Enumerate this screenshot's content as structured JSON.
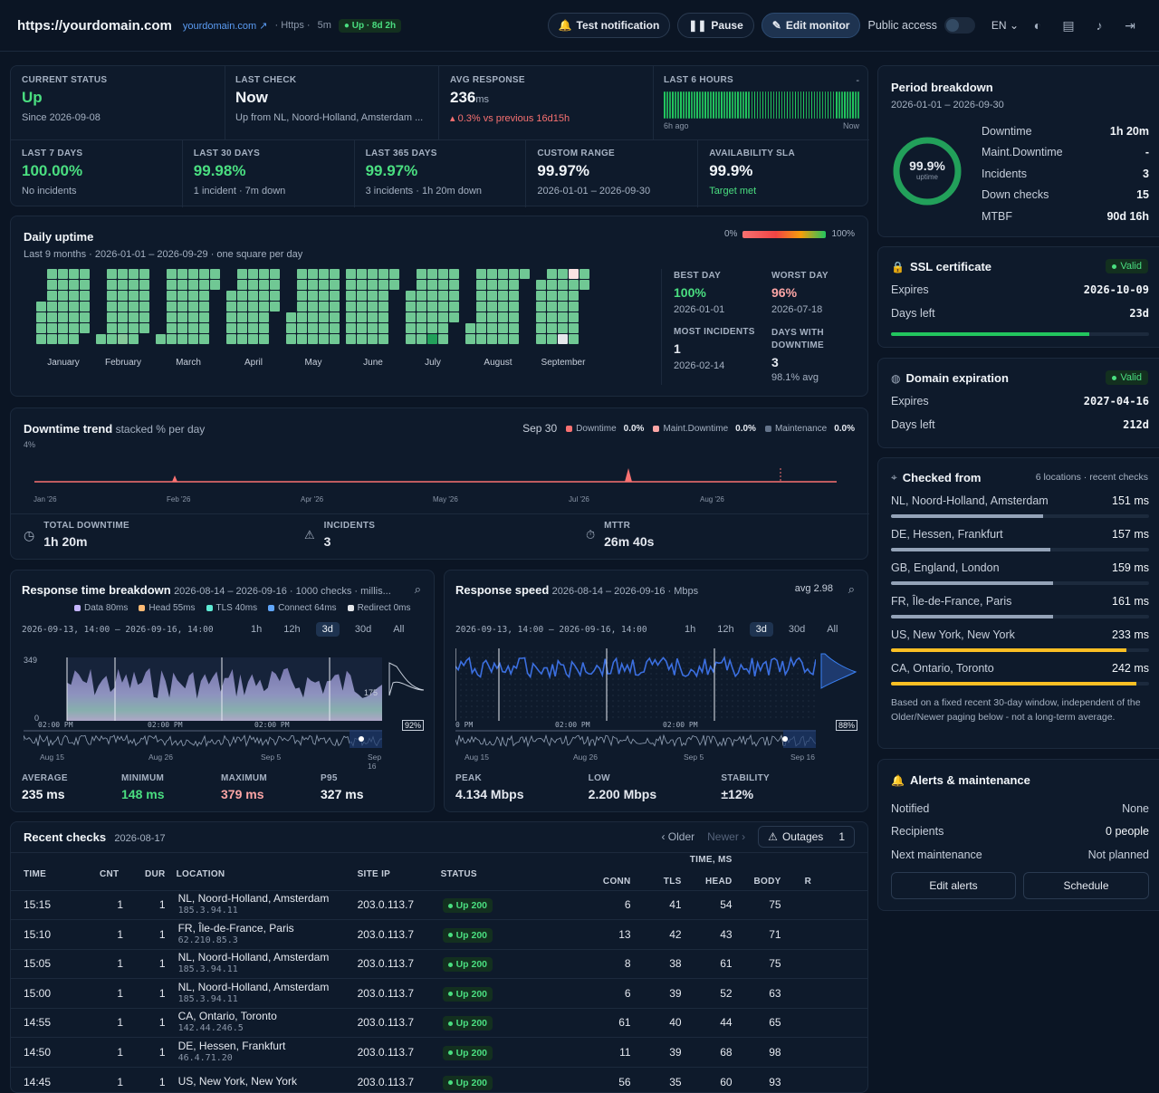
{
  "header": {
    "title": "https://yourdomain.com",
    "link": "yourdomain.com",
    "protocol": "Https",
    "interval": "5m",
    "up_status": "Up · 8d 2h",
    "test_label": "Test notification",
    "pause_label": "Pause",
    "edit_label": "Edit monitor",
    "public_label": "Public access",
    "lang": "EN"
  },
  "status": {
    "current_label": "CURRENT STATUS",
    "current_value": "Up",
    "current_since": "Since 2026-09-08",
    "last_check_label": "LAST CHECK",
    "last_check_value": "Now",
    "last_check_sub": "Up from NL, Noord-Holland, Amsterdam ...",
    "avg_label": "AVG RESPONSE",
    "avg_value": "236",
    "avg_unit": "ms",
    "avg_sub": "0.3% vs previous 16d15h",
    "hours_label": "LAST 6 HOURS",
    "hours_dash": "-",
    "hours_start": "6h ago",
    "hours_end": "Now"
  },
  "periods": [
    {
      "label": "LAST 7 DAYS",
      "value": "100.00%",
      "sub": "No incidents"
    },
    {
      "label": "LAST 30 DAYS",
      "value": "99.98%",
      "sub": "1 incident · 7m down"
    },
    {
      "label": "LAST 365 DAYS",
      "value": "99.97%",
      "sub": "3 incidents · 1h 20m down"
    },
    {
      "label": "CUSTOM RANGE",
      "value": "99.97%",
      "sub": "2026-01-01 – 2026-09-30"
    },
    {
      "label": "AVAILABILITY SLA",
      "value": "99.9%",
      "sub": "Target met"
    }
  ],
  "daily": {
    "title": "Daily uptime",
    "subtitle": "Last 9 months · 2026-01-01 – 2026-09-29 · one square per day",
    "scale_min": "0%",
    "scale_max": "100%",
    "months": [
      "January",
      "February",
      "March",
      "April",
      "May",
      "June",
      "July",
      "August",
      "September"
    ],
    "best_label": "BEST DAY",
    "best_value": "100%",
    "best_date": "2026-01-01",
    "worst_label": "WORST DAY",
    "worst_value": "96%",
    "worst_date": "2026-07-18",
    "most_label": "MOST INCIDENTS",
    "most_value": "1",
    "most_date": "2026-02-14",
    "dwd_label": "DAYS WITH DOWNTIME",
    "dwd_value": "3",
    "dwd_sub": "98.1% avg"
  },
  "trend": {
    "title": "Downtime trend",
    "subtitle": "stacked % per day",
    "date": "Sep 30",
    "legend": [
      {
        "name": "Downtime",
        "value": "0.0%",
        "color": "#f87171"
      },
      {
        "name": "Maint.Downtime",
        "value": "0.0%",
        "color": "#fca5a5"
      },
      {
        "name": "Maintenance",
        "value": "0.0%",
        "color": "#64748b"
      }
    ],
    "ymax": "4%",
    "xticks": [
      "Jan '26",
      "Feb '26",
      "Apr '26",
      "May '26",
      "Jul '26",
      "Aug '26"
    ],
    "total_label": "TOTAL DOWNTIME",
    "total_value": "1h 20m",
    "inc_label": "INCIDENTS",
    "inc_value": "3",
    "mttr_label": "MTTR",
    "mttr_value": "26m 40s"
  },
  "rt": {
    "title": "Response time breakdown",
    "subtitle": "2026-08-14 – 2026-09-16 · 1000 checks · millis...",
    "legend": [
      {
        "name": "Data 80ms",
        "color": "#c4b5fd"
      },
      {
        "name": "Head 55ms",
        "color": "#fdba74"
      },
      {
        "name": "TLS 40ms",
        "color": "#5eead4"
      },
      {
        "name": "Connect 64ms",
        "color": "#60a5fa"
      },
      {
        "name": "Redirect 0ms",
        "color": "#e5e7eb"
      }
    ],
    "range": "2026-09-13, 14:00 – 2026-09-16, 14:00",
    "tabs": [
      "1h",
      "12h",
      "3d",
      "30d",
      "All"
    ],
    "ymax": "349",
    "ymin": "0",
    "marker": "175",
    "pct": "92%",
    "times": [
      "02:00 PM",
      "02:00 PM",
      "02:00 PM"
    ],
    "nav": [
      "Aug 15",
      "Aug 26",
      "Sep 5",
      "Sep 16"
    ],
    "stats": [
      {
        "label": "AVERAGE",
        "value": "235 ms"
      },
      {
        "label": "MINIMUM",
        "value": "148 ms"
      },
      {
        "label": "MAXIMUM",
        "value": "379 ms"
      },
      {
        "label": "P95",
        "value": "327 ms"
      }
    ]
  },
  "speed": {
    "title": "Response speed",
    "subtitle": "2026-08-14 – 2026-09-16 · Mbps",
    "avg": "avg 2.98",
    "range": "2026-09-13, 14:00 – 2026-09-16, 14:00",
    "tabs": [
      "1h",
      "12h",
      "3d",
      "30d",
      "All"
    ],
    "pct": "88%",
    "times": [
      "0 PM",
      "02:00 PM",
      "02:00 PM"
    ],
    "nav": [
      "Aug 15",
      "Aug 26",
      "Sep 5",
      "Sep 16"
    ],
    "stats": [
      {
        "label": "PEAK",
        "value": "4.134 Mbps"
      },
      {
        "label": "LOW",
        "value": "2.200 Mbps"
      },
      {
        "label": "STABILITY",
        "value": "±12%"
      }
    ]
  },
  "recent": {
    "title": "Recent checks",
    "date": "2026-08-17",
    "older": "Older",
    "newer": "Newer",
    "outages": "Outages",
    "outages_count": "1",
    "cols": {
      "time": "TIME",
      "cnt": "CNT",
      "dur": "DUR",
      "location": "LOCATION",
      "siteip": "SITE IP",
      "status": "STATUS",
      "timems": "TIME, MS",
      "conn": "CONN",
      "tls": "TLS",
      "head": "HEAD",
      "body": "BODY",
      "r": "R"
    },
    "rows": [
      {
        "time": "15:15",
        "cnt": "1",
        "dur": "1",
        "loc": "NL, Noord-Holland, Amsterdam",
        "ip": "185.3.94.11",
        "site": "203.0.113.7",
        "status": "Up 200",
        "conn": "6",
        "tls": "41",
        "head": "54",
        "body": "75"
      },
      {
        "time": "15:10",
        "cnt": "1",
        "dur": "1",
        "loc": "FR, Île-de-France, Paris",
        "ip": "62.210.85.3",
        "site": "203.0.113.7",
        "status": "Up 200",
        "conn": "13",
        "tls": "42",
        "head": "43",
        "body": "71"
      },
      {
        "time": "15:05",
        "cnt": "1",
        "dur": "1",
        "loc": "NL, Noord-Holland, Amsterdam",
        "ip": "185.3.94.11",
        "site": "203.0.113.7",
        "status": "Up 200",
        "conn": "8",
        "tls": "38",
        "head": "61",
        "body": "75"
      },
      {
        "time": "15:00",
        "cnt": "1",
        "dur": "1",
        "loc": "NL, Noord-Holland, Amsterdam",
        "ip": "185.3.94.11",
        "site": "203.0.113.7",
        "status": "Up 200",
        "conn": "6",
        "tls": "39",
        "head": "52",
        "body": "63"
      },
      {
        "time": "14:55",
        "cnt": "1",
        "dur": "1",
        "loc": "CA, Ontario, Toronto",
        "ip": "142.44.246.5",
        "site": "203.0.113.7",
        "status": "Up 200",
        "conn": "61",
        "tls": "40",
        "head": "44",
        "body": "65"
      },
      {
        "time": "14:50",
        "cnt": "1",
        "dur": "1",
        "loc": "DE, Hessen, Frankfurt",
        "ip": "46.4.71.20",
        "site": "203.0.113.7",
        "status": "Up 200",
        "conn": "11",
        "tls": "39",
        "head": "68",
        "body": "98"
      },
      {
        "time": "14:45",
        "cnt": "1",
        "dur": "1",
        "loc": "US, New York, New York",
        "ip": "",
        "site": "203.0.113.7",
        "status": "Up 200",
        "conn": "56",
        "tls": "35",
        "head": "60",
        "body": "93"
      }
    ]
  },
  "period": {
    "title": "Period breakdown",
    "range": "2026-01-01 – 2026-09-30",
    "ring_value": "99.9%",
    "ring_label": "uptime",
    "uptime_pct": 99.9,
    "rows": [
      {
        "k": "Downtime",
        "v": "1h 20m"
      },
      {
        "k": "Maint.Downtime",
        "v": "-"
      },
      {
        "k": "Incidents",
        "v": "3"
      },
      {
        "k": "Down checks",
        "v": "15"
      },
      {
        "k": "MTBF",
        "v": "90d 16h"
      }
    ]
  },
  "ssl": {
    "title": "SSL certificate",
    "badge": "Valid",
    "expires_label": "Expires",
    "expires": "2026-10-09",
    "days_label": "Days left",
    "days": "23d",
    "fill": 0.77
  },
  "domain": {
    "title": "Domain expiration",
    "badge": "Valid",
    "expires_label": "Expires",
    "expires": "2027-04-16",
    "days_label": "Days left",
    "days": "212d"
  },
  "checked": {
    "title": "Checked from",
    "meta": "6 locations · recent checks",
    "items": [
      {
        "name": "NL, Noord-Holland, Amsterdam",
        "ms": "151 ms",
        "fill": 0.62,
        "color": "#94a3b8"
      },
      {
        "name": "DE, Hessen, Frankfurt",
        "ms": "157 ms",
        "fill": 0.65,
        "color": "#94a3b8"
      },
      {
        "name": "GB, England, London",
        "ms": "159 ms",
        "fill": 0.66,
        "color": "#94a3b8"
      },
      {
        "name": "FR, Île-de-France, Paris",
        "ms": "161 ms",
        "fill": 0.66,
        "color": "#94a3b8"
      },
      {
        "name": "US, New York, New York",
        "ms": "233 ms",
        "fill": 0.96,
        "color": "#fbbf24"
      },
      {
        "name": "CA, Ontario, Toronto",
        "ms": "242 ms",
        "fill": 1.0,
        "color": "#fbbf24"
      }
    ],
    "note": "Based on a fixed recent 30-day window, independent of the Older/Newer paging below - not a long-term average."
  },
  "alerts": {
    "title": "Alerts & maintenance",
    "rows": [
      {
        "k": "Notified",
        "v": "None"
      },
      {
        "k": "Recipients",
        "v": "0 people"
      },
      {
        "k": "Next maintenance",
        "v": "Not planned"
      }
    ],
    "edit": "Edit alerts",
    "schedule": "Schedule"
  }
}
